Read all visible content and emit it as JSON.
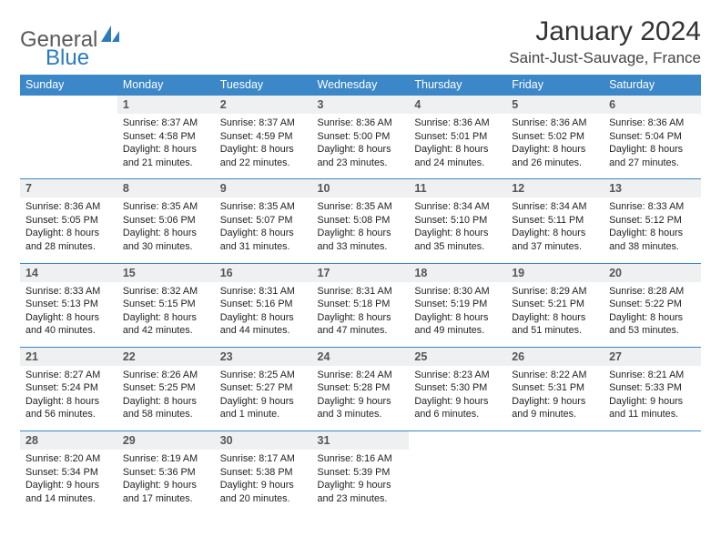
{
  "brand": {
    "part1": "General",
    "part2": "Blue"
  },
  "title": "January 2024",
  "location": "Saint-Just-Sauvage, France",
  "colors": {
    "header_bg": "#3b87c8",
    "header_text": "#ffffff",
    "daynum_bg": "#eef0f1",
    "brand_gray": "#5a5a5a",
    "brand_blue": "#2b7bbd",
    "border": "#3b87c8"
  },
  "weekdays": [
    "Sunday",
    "Monday",
    "Tuesday",
    "Wednesday",
    "Thursday",
    "Friday",
    "Saturday"
  ],
  "weeks": [
    [
      {
        "n": "",
        "sr": "",
        "ss": "",
        "dl1": "",
        "dl2": "",
        "empty": true
      },
      {
        "n": "1",
        "sr": "Sunrise: 8:37 AM",
        "ss": "Sunset: 4:58 PM",
        "dl1": "Daylight: 8 hours",
        "dl2": "and 21 minutes."
      },
      {
        "n": "2",
        "sr": "Sunrise: 8:37 AM",
        "ss": "Sunset: 4:59 PM",
        "dl1": "Daylight: 8 hours",
        "dl2": "and 22 minutes."
      },
      {
        "n": "3",
        "sr": "Sunrise: 8:36 AM",
        "ss": "Sunset: 5:00 PM",
        "dl1": "Daylight: 8 hours",
        "dl2": "and 23 minutes."
      },
      {
        "n": "4",
        "sr": "Sunrise: 8:36 AM",
        "ss": "Sunset: 5:01 PM",
        "dl1": "Daylight: 8 hours",
        "dl2": "and 24 minutes."
      },
      {
        "n": "5",
        "sr": "Sunrise: 8:36 AM",
        "ss": "Sunset: 5:02 PM",
        "dl1": "Daylight: 8 hours",
        "dl2": "and 26 minutes."
      },
      {
        "n": "6",
        "sr": "Sunrise: 8:36 AM",
        "ss": "Sunset: 5:04 PM",
        "dl1": "Daylight: 8 hours",
        "dl2": "and 27 minutes."
      }
    ],
    [
      {
        "n": "7",
        "sr": "Sunrise: 8:36 AM",
        "ss": "Sunset: 5:05 PM",
        "dl1": "Daylight: 8 hours",
        "dl2": "and 28 minutes."
      },
      {
        "n": "8",
        "sr": "Sunrise: 8:35 AM",
        "ss": "Sunset: 5:06 PM",
        "dl1": "Daylight: 8 hours",
        "dl2": "and 30 minutes."
      },
      {
        "n": "9",
        "sr": "Sunrise: 8:35 AM",
        "ss": "Sunset: 5:07 PM",
        "dl1": "Daylight: 8 hours",
        "dl2": "and 31 minutes."
      },
      {
        "n": "10",
        "sr": "Sunrise: 8:35 AM",
        "ss": "Sunset: 5:08 PM",
        "dl1": "Daylight: 8 hours",
        "dl2": "and 33 minutes."
      },
      {
        "n": "11",
        "sr": "Sunrise: 8:34 AM",
        "ss": "Sunset: 5:10 PM",
        "dl1": "Daylight: 8 hours",
        "dl2": "and 35 minutes."
      },
      {
        "n": "12",
        "sr": "Sunrise: 8:34 AM",
        "ss": "Sunset: 5:11 PM",
        "dl1": "Daylight: 8 hours",
        "dl2": "and 37 minutes."
      },
      {
        "n": "13",
        "sr": "Sunrise: 8:33 AM",
        "ss": "Sunset: 5:12 PM",
        "dl1": "Daylight: 8 hours",
        "dl2": "and 38 minutes."
      }
    ],
    [
      {
        "n": "14",
        "sr": "Sunrise: 8:33 AM",
        "ss": "Sunset: 5:13 PM",
        "dl1": "Daylight: 8 hours",
        "dl2": "and 40 minutes."
      },
      {
        "n": "15",
        "sr": "Sunrise: 8:32 AM",
        "ss": "Sunset: 5:15 PM",
        "dl1": "Daylight: 8 hours",
        "dl2": "and 42 minutes."
      },
      {
        "n": "16",
        "sr": "Sunrise: 8:31 AM",
        "ss": "Sunset: 5:16 PM",
        "dl1": "Daylight: 8 hours",
        "dl2": "and 44 minutes."
      },
      {
        "n": "17",
        "sr": "Sunrise: 8:31 AM",
        "ss": "Sunset: 5:18 PM",
        "dl1": "Daylight: 8 hours",
        "dl2": "and 47 minutes."
      },
      {
        "n": "18",
        "sr": "Sunrise: 8:30 AM",
        "ss": "Sunset: 5:19 PM",
        "dl1": "Daylight: 8 hours",
        "dl2": "and 49 minutes."
      },
      {
        "n": "19",
        "sr": "Sunrise: 8:29 AM",
        "ss": "Sunset: 5:21 PM",
        "dl1": "Daylight: 8 hours",
        "dl2": "and 51 minutes."
      },
      {
        "n": "20",
        "sr": "Sunrise: 8:28 AM",
        "ss": "Sunset: 5:22 PM",
        "dl1": "Daylight: 8 hours",
        "dl2": "and 53 minutes."
      }
    ],
    [
      {
        "n": "21",
        "sr": "Sunrise: 8:27 AM",
        "ss": "Sunset: 5:24 PM",
        "dl1": "Daylight: 8 hours",
        "dl2": "and 56 minutes."
      },
      {
        "n": "22",
        "sr": "Sunrise: 8:26 AM",
        "ss": "Sunset: 5:25 PM",
        "dl1": "Daylight: 8 hours",
        "dl2": "and 58 minutes."
      },
      {
        "n": "23",
        "sr": "Sunrise: 8:25 AM",
        "ss": "Sunset: 5:27 PM",
        "dl1": "Daylight: 9 hours",
        "dl2": "and 1 minute."
      },
      {
        "n": "24",
        "sr": "Sunrise: 8:24 AM",
        "ss": "Sunset: 5:28 PM",
        "dl1": "Daylight: 9 hours",
        "dl2": "and 3 minutes."
      },
      {
        "n": "25",
        "sr": "Sunrise: 8:23 AM",
        "ss": "Sunset: 5:30 PM",
        "dl1": "Daylight: 9 hours",
        "dl2": "and 6 minutes."
      },
      {
        "n": "26",
        "sr": "Sunrise: 8:22 AM",
        "ss": "Sunset: 5:31 PM",
        "dl1": "Daylight: 9 hours",
        "dl2": "and 9 minutes."
      },
      {
        "n": "27",
        "sr": "Sunrise: 8:21 AM",
        "ss": "Sunset: 5:33 PM",
        "dl1": "Daylight: 9 hours",
        "dl2": "and 11 minutes."
      }
    ],
    [
      {
        "n": "28",
        "sr": "Sunrise: 8:20 AM",
        "ss": "Sunset: 5:34 PM",
        "dl1": "Daylight: 9 hours",
        "dl2": "and 14 minutes."
      },
      {
        "n": "29",
        "sr": "Sunrise: 8:19 AM",
        "ss": "Sunset: 5:36 PM",
        "dl1": "Daylight: 9 hours",
        "dl2": "and 17 minutes."
      },
      {
        "n": "30",
        "sr": "Sunrise: 8:17 AM",
        "ss": "Sunset: 5:38 PM",
        "dl1": "Daylight: 9 hours",
        "dl2": "and 20 minutes."
      },
      {
        "n": "31",
        "sr": "Sunrise: 8:16 AM",
        "ss": "Sunset: 5:39 PM",
        "dl1": "Daylight: 9 hours",
        "dl2": "and 23 minutes."
      },
      {
        "n": "",
        "sr": "",
        "ss": "",
        "dl1": "",
        "dl2": "",
        "empty": true
      },
      {
        "n": "",
        "sr": "",
        "ss": "",
        "dl1": "",
        "dl2": "",
        "empty": true
      },
      {
        "n": "",
        "sr": "",
        "ss": "",
        "dl1": "",
        "dl2": "",
        "empty": true
      }
    ]
  ]
}
